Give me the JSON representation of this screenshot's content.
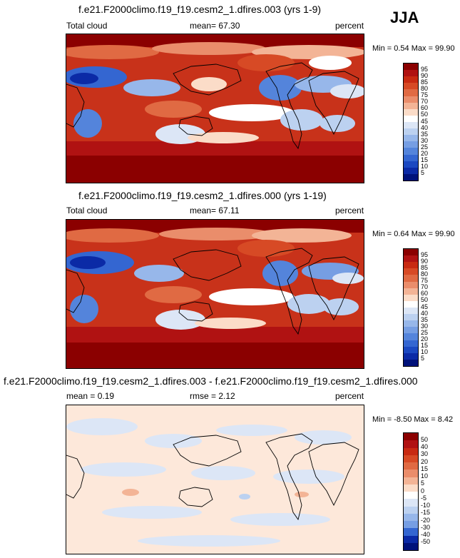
{
  "season": "JJA",
  "panels": [
    {
      "title": "f.e21.F2000climo.f19_f19.cesm2_1.dfires.003 (yrs 1-9)",
      "left_label": "Total cloud",
      "center_label": "mean=  67.30",
      "right_label": "percent",
      "minmax": "Min =   0.54 Max =  99.90",
      "colorbar_ticks": [
        "95",
        "90",
        "85",
        "80",
        "75",
        "70",
        "60",
        "50",
        "45",
        "40",
        "35",
        "30",
        "25",
        "20",
        "15",
        "10",
        "5"
      ],
      "colors": [
        "#8b0000",
        "#b01212",
        "#c82a12",
        "#d74a25",
        "#e06a43",
        "#ea8d6b",
        "#f3b496",
        "#fbdcc8",
        "#ffffff",
        "#dce6f6",
        "#bcd1f0",
        "#97b7ea",
        "#769ee3",
        "#5484db",
        "#3466d1",
        "#1b48c1",
        "#0b2aa6",
        "#00127a"
      ]
    },
    {
      "title": "f.e21.F2000climo.f19_f19.cesm2_1.dfires.000 (yrs 1-19)",
      "left_label": "Total cloud",
      "center_label": "mean=  67.11",
      "right_label": "percent",
      "minmax": "Min =   0.64 Max =  99.90",
      "colorbar_ticks": [
        "95",
        "90",
        "85",
        "80",
        "75",
        "70",
        "60",
        "50",
        "45",
        "40",
        "35",
        "30",
        "25",
        "20",
        "15",
        "10",
        "5"
      ],
      "colors": [
        "#8b0000",
        "#b01212",
        "#c82a12",
        "#d74a25",
        "#e06a43",
        "#ea8d6b",
        "#f3b496",
        "#fbdcc8",
        "#ffffff",
        "#dce6f6",
        "#bcd1f0",
        "#97b7ea",
        "#769ee3",
        "#5484db",
        "#3466d1",
        "#1b48c1",
        "#0b2aa6",
        "#00127a"
      ]
    },
    {
      "title": "f.e21.F2000climo.f19_f19.cesm2_1.dfires.003 - f.e21.F2000climo.f19_f19.cesm2_1.dfires.000",
      "left_label": "mean =   0.19",
      "center_label": "rmse =   2.12",
      "right_label": "percent",
      "minmax": "Min =  -8.50 Max =   8.42",
      "colorbar_ticks": [
        "50",
        "40",
        "30",
        "20",
        "15",
        "10",
        "5",
        "0",
        "-5",
        "-10",
        "-15",
        "-20",
        "-30",
        "-40",
        "-50"
      ],
      "colors": [
        "#8b0000",
        "#b01212",
        "#c82a12",
        "#d74a25",
        "#e06a43",
        "#ea8d6b",
        "#f3b496",
        "#fbdcc8",
        "#ffffff",
        "#dce6f6",
        "#bcd1f0",
        "#97b7ea",
        "#769ee3",
        "#3466d1",
        "#0b2aa6",
        "#00127a"
      ]
    }
  ]
}
